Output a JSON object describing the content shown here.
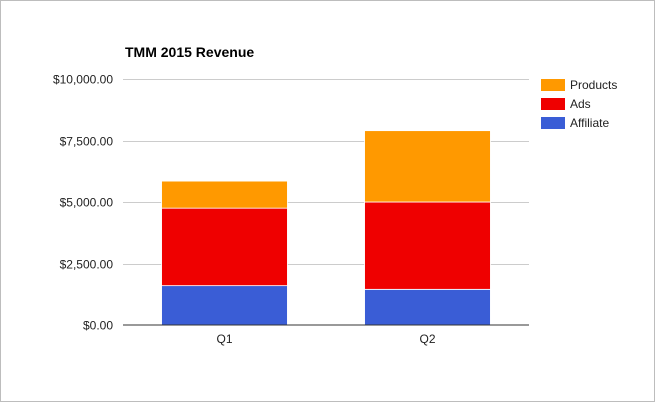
{
  "chart_data": {
    "type": "bar",
    "stacked": true,
    "title": "TMM 2015 Revenue",
    "categories": [
      "Q1",
      "Q2"
    ],
    "series": [
      {
        "name": "Affiliate",
        "color": "#3a5dd6",
        "values": [
          1600,
          1450
        ]
      },
      {
        "name": "Ads",
        "color": "#ef0000",
        "values": [
          3150,
          3550
        ]
      },
      {
        "name": "Products",
        "color": "#ff9900",
        "values": [
          1100,
          2900
        ]
      }
    ],
    "ylim": [
      0,
      10000
    ],
    "yticks": [
      0,
      2500,
      5000,
      7500,
      10000
    ],
    "ytick_labels": [
      "$0.00",
      "$2,500.00",
      "$5,000.00",
      "$7,500.00",
      "$10,000.00"
    ],
    "grid": true,
    "legend_position": "right",
    "legend_order": [
      "Products",
      "Ads",
      "Affiliate"
    ]
  }
}
